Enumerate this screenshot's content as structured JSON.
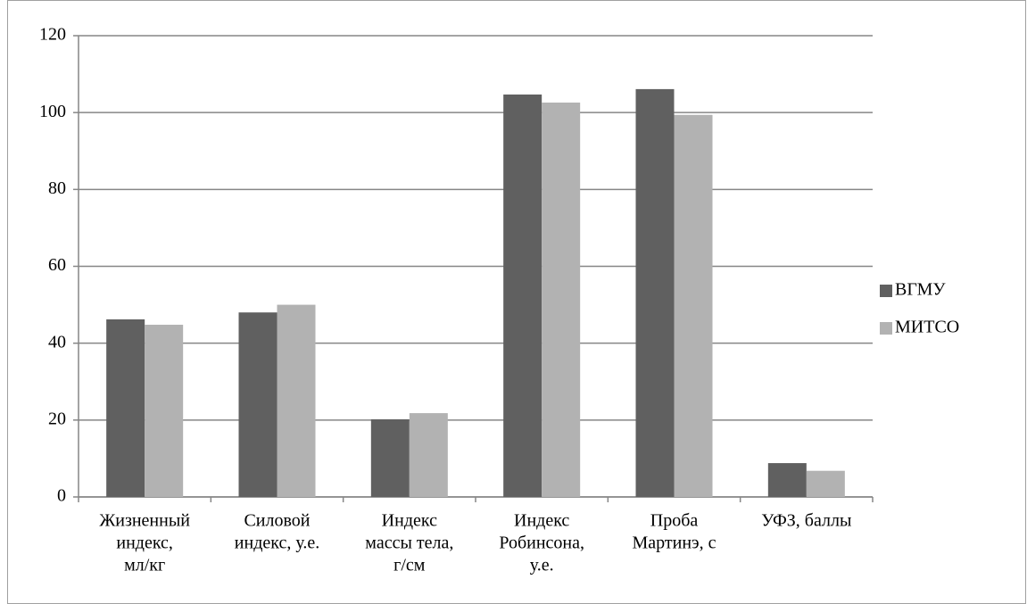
{
  "chart_data": {
    "type": "bar",
    "categories": [
      [
        "Жизненный",
        "индекс,",
        "мл/кг"
      ],
      [
        "Силовой",
        "индекс, у.е."
      ],
      [
        "Индекс",
        "массы тела,",
        "г/см"
      ],
      [
        "Индекс",
        "Робинсона,",
        "у.е."
      ],
      [
        "Проба",
        "Мартинэ, с"
      ],
      [
        "УФЗ, баллы"
      ]
    ],
    "series": [
      {
        "name": "ВГМУ",
        "color": "#606060",
        "values": [
          46.2,
          48,
          20.2,
          104.7,
          106.1,
          8.8
        ]
      },
      {
        "name": "МИТСО",
        "color": "#b2b2b2",
        "values": [
          44.8,
          50,
          21.8,
          102.6,
          99.4,
          6.8
        ]
      }
    ],
    "ylim": [
      0,
      120
    ],
    "yticks": [
      0,
      20,
      40,
      60,
      80,
      100,
      120
    ],
    "grid": true,
    "legend": "right"
  }
}
